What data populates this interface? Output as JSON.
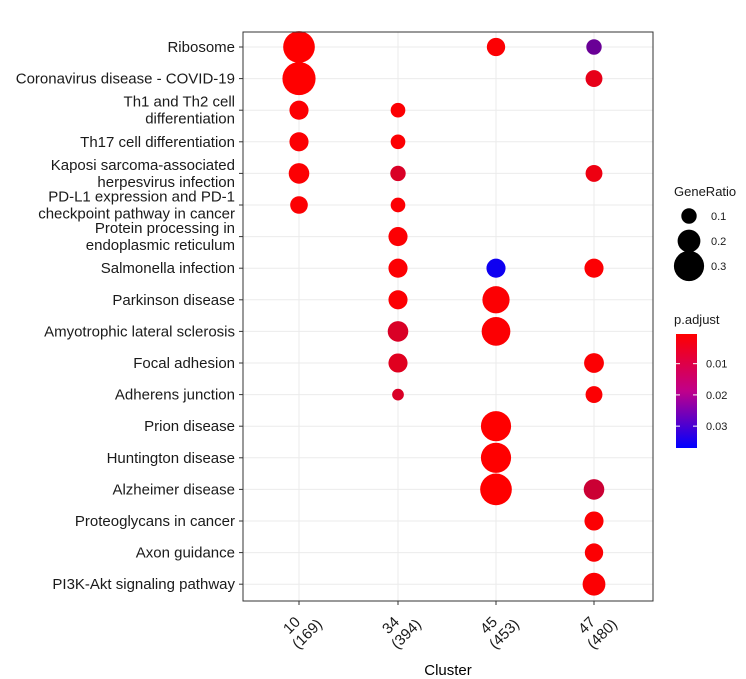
{
  "chart_data": {
    "type": "scatter",
    "xlabel": "Cluster",
    "ylabel": "",
    "x": [
      {
        "id": "10",
        "label": [
          "10",
          "(169)"
        ]
      },
      {
        "id": "34",
        "label": [
          "34",
          "(394)"
        ]
      },
      {
        "id": "45",
        "label": [
          "45",
          "(453)"
        ]
      },
      {
        "id": "47",
        "label": [
          "47",
          "(480)"
        ]
      }
    ],
    "y": [
      {
        "id": "ribosome",
        "label": [
          "Ribosome"
        ]
      },
      {
        "id": "covid",
        "label": [
          "Coronavirus disease - COVID-19"
        ]
      },
      {
        "id": "th1th2",
        "label": [
          "Th1 and Th2 cell",
          "differentiation"
        ]
      },
      {
        "id": "th17",
        "label": [
          "Th17 cell differentiation"
        ]
      },
      {
        "id": "kaposi",
        "label": [
          "Kaposi sarcoma-associated",
          "herpesvirus infection"
        ]
      },
      {
        "id": "pdl1",
        "label": [
          "PD-L1 expression and PD-1",
          "checkpoint pathway in cancer"
        ]
      },
      {
        "id": "protein_er",
        "label": [
          "Protein processing in",
          "endoplasmic reticulum"
        ]
      },
      {
        "id": "salmonella",
        "label": [
          "Salmonella infection"
        ]
      },
      {
        "id": "parkinson",
        "label": [
          "Parkinson disease"
        ]
      },
      {
        "id": "als",
        "label": [
          "Amyotrophic lateral sclerosis"
        ]
      },
      {
        "id": "focal",
        "label": [
          "Focal adhesion"
        ]
      },
      {
        "id": "adherens",
        "label": [
          "Adherens junction"
        ]
      },
      {
        "id": "prion",
        "label": [
          "Prion disease"
        ]
      },
      {
        "id": "huntington",
        "label": [
          "Huntington disease"
        ]
      },
      {
        "id": "alzheimer",
        "label": [
          "Alzheimer disease"
        ]
      },
      {
        "id": "proteoglycans",
        "label": [
          "Proteoglycans in cancer"
        ]
      },
      {
        "id": "axon",
        "label": [
          "Axon guidance"
        ]
      },
      {
        "id": "pi3k",
        "label": [
          "PI3K-Akt signaling pathway"
        ]
      }
    ],
    "points": [
      {
        "x": "10",
        "y": "ribosome",
        "gene_ratio": 0.32,
        "p_adjust": 0.0005
      },
      {
        "x": "45",
        "y": "ribosome",
        "gene_ratio": 0.14,
        "p_adjust": 0.001
      },
      {
        "x": "47",
        "y": "ribosome",
        "gene_ratio": 0.1,
        "p_adjust": 0.022
      },
      {
        "x": "10",
        "y": "covid",
        "gene_ratio": 0.34,
        "p_adjust": 0.0005
      },
      {
        "x": "47",
        "y": "covid",
        "gene_ratio": 0.12,
        "p_adjust": 0.004
      },
      {
        "x": "10",
        "y": "th1th2",
        "gene_ratio": 0.15,
        "p_adjust": 0.001
      },
      {
        "x": "34",
        "y": "th1th2",
        "gene_ratio": 0.09,
        "p_adjust": 0.001
      },
      {
        "x": "10",
        "y": "th17",
        "gene_ratio": 0.15,
        "p_adjust": 0.001
      },
      {
        "x": "34",
        "y": "th17",
        "gene_ratio": 0.09,
        "p_adjust": 0.001
      },
      {
        "x": "10",
        "y": "kaposi",
        "gene_ratio": 0.17,
        "p_adjust": 0.001
      },
      {
        "x": "34",
        "y": "kaposi",
        "gene_ratio": 0.1,
        "p_adjust": 0.006
      },
      {
        "x": "47",
        "y": "kaposi",
        "gene_ratio": 0.12,
        "p_adjust": 0.003
      },
      {
        "x": "10",
        "y": "pdl1",
        "gene_ratio": 0.13,
        "p_adjust": 0.001
      },
      {
        "x": "34",
        "y": "pdl1",
        "gene_ratio": 0.09,
        "p_adjust": 0.001
      },
      {
        "x": "34",
        "y": "protein_er",
        "gene_ratio": 0.15,
        "p_adjust": 0.001
      },
      {
        "x": "34",
        "y": "salmonella",
        "gene_ratio": 0.15,
        "p_adjust": 0.001
      },
      {
        "x": "45",
        "y": "salmonella",
        "gene_ratio": 0.15,
        "p_adjust": 0.035
      },
      {
        "x": "47",
        "y": "salmonella",
        "gene_ratio": 0.15,
        "p_adjust": 0.001
      },
      {
        "x": "34",
        "y": "parkinson",
        "gene_ratio": 0.15,
        "p_adjust": 0.001
      },
      {
        "x": "45",
        "y": "parkinson",
        "gene_ratio": 0.26,
        "p_adjust": 0.001
      },
      {
        "x": "34",
        "y": "als",
        "gene_ratio": 0.17,
        "p_adjust": 0.006
      },
      {
        "x": "45",
        "y": "als",
        "gene_ratio": 0.28,
        "p_adjust": 0.001
      },
      {
        "x": "34",
        "y": "focal",
        "gene_ratio": 0.15,
        "p_adjust": 0.005
      },
      {
        "x": "47",
        "y": "focal",
        "gene_ratio": 0.16,
        "p_adjust": 0.001
      },
      {
        "x": "34",
        "y": "adherens",
        "gene_ratio": 0.05,
        "p_adjust": 0.006
      },
      {
        "x": "47",
        "y": "adherens",
        "gene_ratio": 0.12,
        "p_adjust": 0.001
      },
      {
        "x": "45",
        "y": "prion",
        "gene_ratio": 0.3,
        "p_adjust": 0.0005
      },
      {
        "x": "45",
        "y": "huntington",
        "gene_ratio": 0.3,
        "p_adjust": 0.0005
      },
      {
        "x": "45",
        "y": "alzheimer",
        "gene_ratio": 0.32,
        "p_adjust": 0.0005
      },
      {
        "x": "47",
        "y": "alzheimer",
        "gene_ratio": 0.17,
        "p_adjust": 0.008
      },
      {
        "x": "47",
        "y": "proteoglycans",
        "gene_ratio": 0.15,
        "p_adjust": 0.001
      },
      {
        "x": "47",
        "y": "axon",
        "gene_ratio": 0.14,
        "p_adjust": 0.001
      },
      {
        "x": "47",
        "y": "pi3k",
        "gene_ratio": 0.2,
        "p_adjust": 0.001
      }
    ],
    "size_legend": {
      "title": "GeneRatio",
      "breaks": [
        0.1,
        0.2,
        0.3
      ],
      "labels": [
        "0.1",
        "0.2",
        "0.3"
      ]
    },
    "color_legend": {
      "title": "p.adjust",
      "breaks": [
        0.01,
        0.02,
        0.03
      ],
      "labels": [
        "0.01",
        "0.02",
        "0.03"
      ],
      "range": [
        0.0005,
        0.037
      ],
      "low_color": "#ff0000",
      "high_color": "#0000ff",
      "mid_color": "#c0008a"
    },
    "grid": true,
    "legend_position": "right"
  }
}
